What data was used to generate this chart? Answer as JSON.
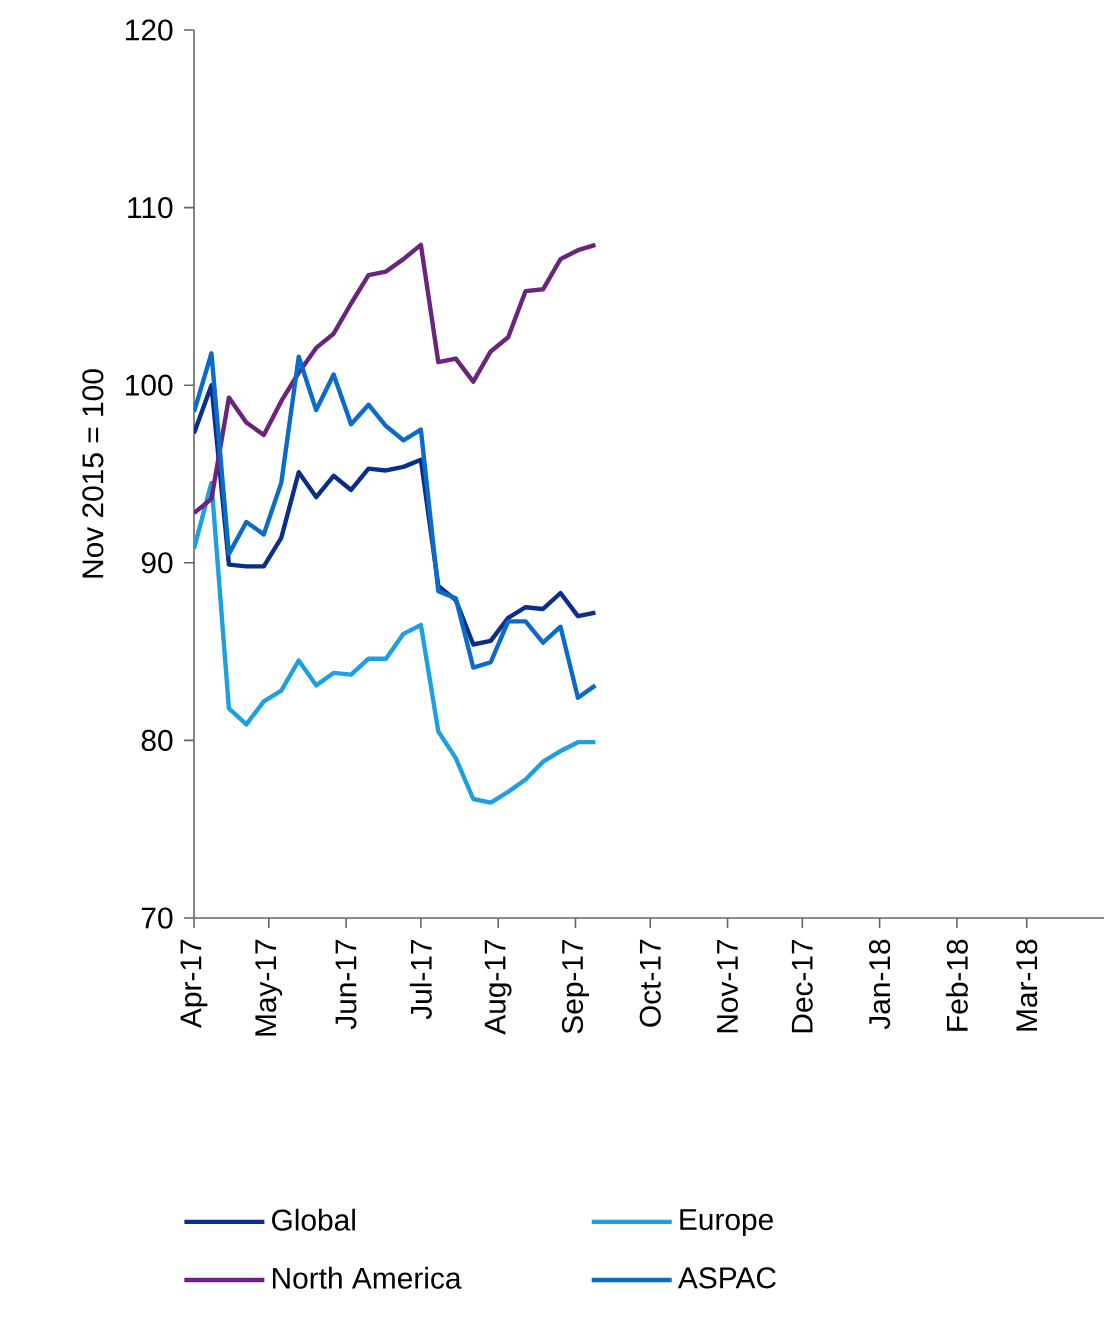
{
  "chart_data": {
    "type": "line",
    "ylabel": "Nov 2015 = 100",
    "x": [
      "2017-04-01",
      "2017-04-08",
      "2017-04-15",
      "2017-04-22",
      "2017-04-29",
      "2017-05-06",
      "2017-05-13",
      "2017-05-20",
      "2017-05-27",
      "2017-06-03",
      "2017-06-10",
      "2017-06-17",
      "2017-06-24",
      "2017-07-01",
      "2017-07-08",
      "2017-07-15",
      "2017-07-22",
      "2017-07-29",
      "2017-08-05",
      "2017-08-12",
      "2017-08-19",
      "2017-08-26",
      "2017-09-02",
      "2017-09-09"
    ],
    "series": [
      {
        "name": "Global",
        "color": "#0a2f8a",
        "values": [
          97.3,
          100,
          89.9,
          89.8,
          89.8,
          91.4,
          95.1,
          93.7,
          94.9,
          94.1,
          95.3,
          95.2,
          95.4,
          95.8,
          88.7,
          87.9,
          85.4,
          85.6,
          86.9,
          87.5,
          87.4,
          88.3,
          87.0,
          87.2
        ]
      },
      {
        "name": "Europe",
        "color": "#1ca0e0",
        "values": [
          90.8,
          94.5,
          81.8,
          80.9,
          82.2,
          82.8,
          84.5,
          83.1,
          83.8,
          83.7,
          84.6,
          84.6,
          86.0,
          86.5,
          80.5,
          79.0,
          76.7,
          76.5,
          77.1,
          77.8,
          78.8,
          79.4,
          79.9,
          79.9
        ]
      },
      {
        "name": "North America",
        "color": "#6b2380",
        "values": [
          92.8,
          93.6,
          99.3,
          97.9,
          97.2,
          99.1,
          100.7,
          102.1,
          102.9,
          104.6,
          106.2,
          106.4,
          107.1,
          107.9,
          101.3,
          101.5,
          100.2,
          101.9,
          102.7,
          105.3,
          105.4,
          107.1,
          107.6,
          107.9
        ]
      },
      {
        "name": "ASPAC",
        "color": "#0a6cc8",
        "values": [
          98.5,
          101.8,
          90.5,
          92.3,
          91.6,
          94.5,
          101.6,
          98.6,
          100.6,
          97.8,
          98.9,
          97.7,
          96.9,
          97.5,
          88.4,
          88.0,
          84.1,
          84.4,
          86.7,
          86.7,
          85.5,
          86.4,
          82.4,
          83.1
        ]
      }
    ],
    "xlim": [
      "2017-04-01",
      "2018-04-01"
    ],
    "xticks": [
      {
        "value": "2017-04-01",
        "label": "Apr-17"
      },
      {
        "value": "2017-05-01",
        "label": "May-17"
      },
      {
        "value": "2017-06-01",
        "label": "Jun-17"
      },
      {
        "value": "2017-07-01",
        "label": "Jul-17"
      },
      {
        "value": "2017-08-01",
        "label": "Aug-17"
      },
      {
        "value": "2017-09-01",
        "label": "Sep-17"
      },
      {
        "value": "2017-10-01",
        "label": "Oct-17"
      },
      {
        "value": "2017-11-01",
        "label": "Nov-17"
      },
      {
        "value": "2017-12-01",
        "label": "Dec-17"
      },
      {
        "value": "2018-01-01",
        "label": "Jan-18"
      },
      {
        "value": "2018-02-01",
        "label": "Feb-18"
      },
      {
        "value": "2018-03-01",
        "label": "Mar-18"
      }
    ],
    "ylim": [
      70,
      120
    ],
    "yticks": [
      70,
      80,
      90,
      100,
      110,
      120
    ],
    "grid": false,
    "legend": "bottom",
    "marker": "none",
    "line_style": "solid"
  }
}
